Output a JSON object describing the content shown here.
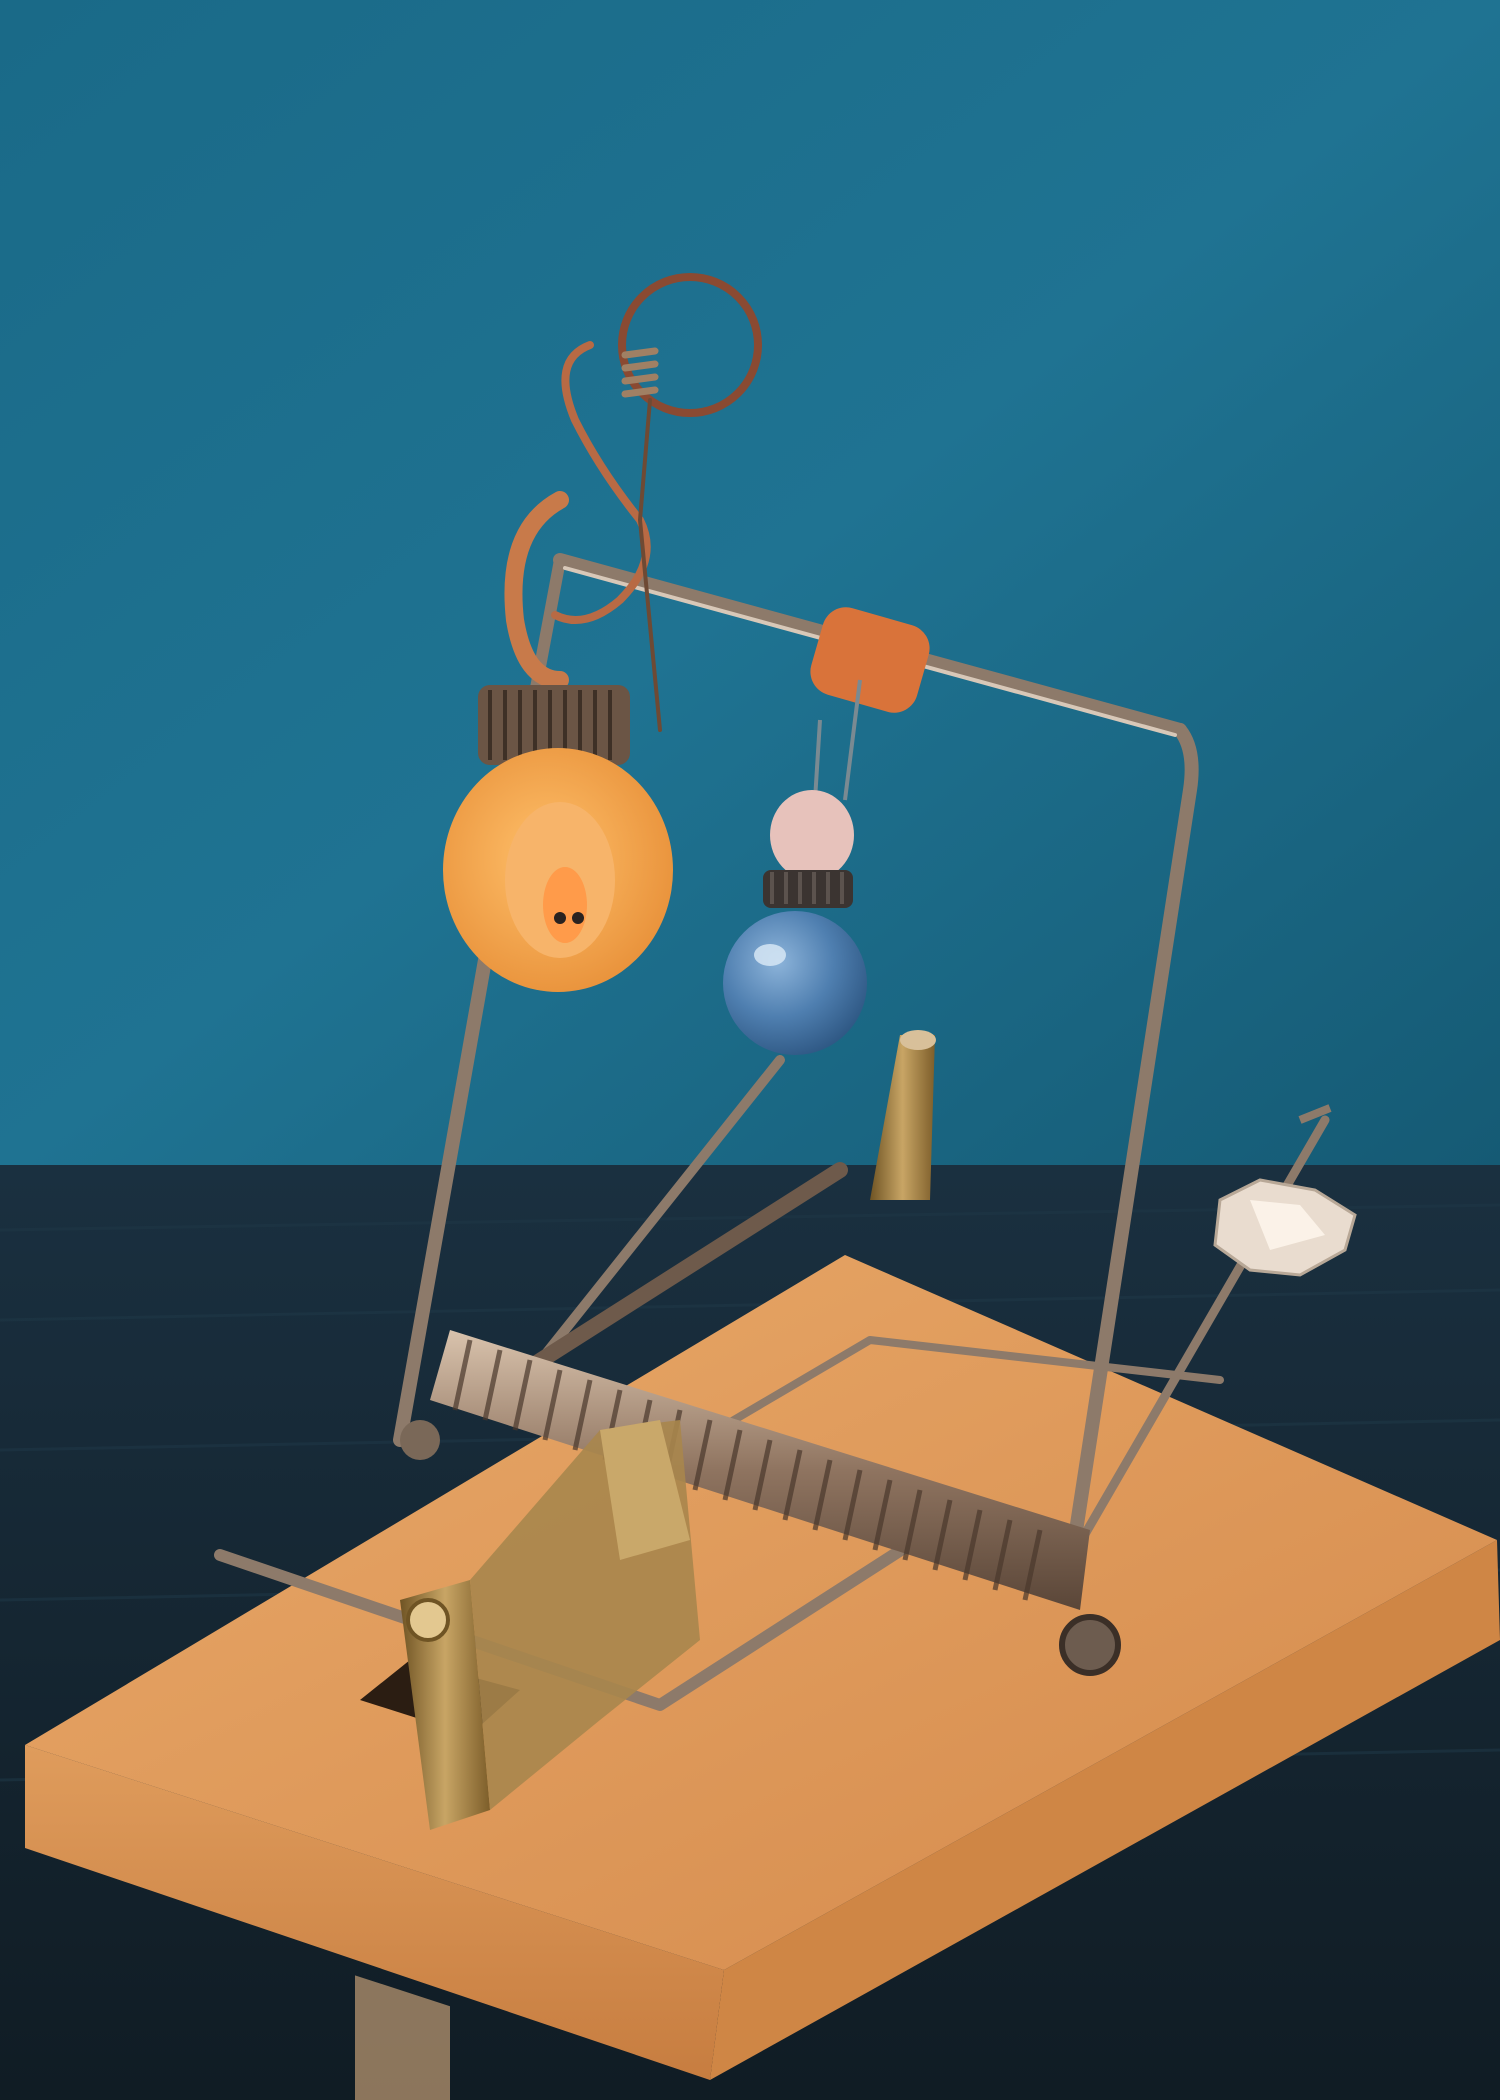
{
  "image": {
    "kind": "photograph",
    "caption": ""
  },
  "colors": {
    "backdrop_teal": "#1f6f8c",
    "backdrop_deep": "#17526a",
    "table_dark": "#16252f",
    "wood_light": "#e7a768",
    "wood_mid": "#d98f4f",
    "wood_edge": "#c47a3e",
    "wire_metal": "#8d7a6a",
    "brass": "#b08a4a",
    "orange_disc": "#f2a24a",
    "blue_ball": "#4f7fb0",
    "pink_bead": "#e7c2bb",
    "copper": "#c87a4a"
  },
  "objects": {
    "backdrop": "blue-cloth-backdrop",
    "table": "dark-wood-table",
    "base": "mousetrap-wooden-base",
    "frame": "wire-frame",
    "spring": "coil-spring",
    "latch": "brass-latch-bracket",
    "disc": "orange-disc-pendant",
    "ball": "blue-ball-pendant",
    "hook": "copper-wire-hook",
    "crystal": "crystal-bead",
    "bolt": "brass-bolt-weight"
  }
}
